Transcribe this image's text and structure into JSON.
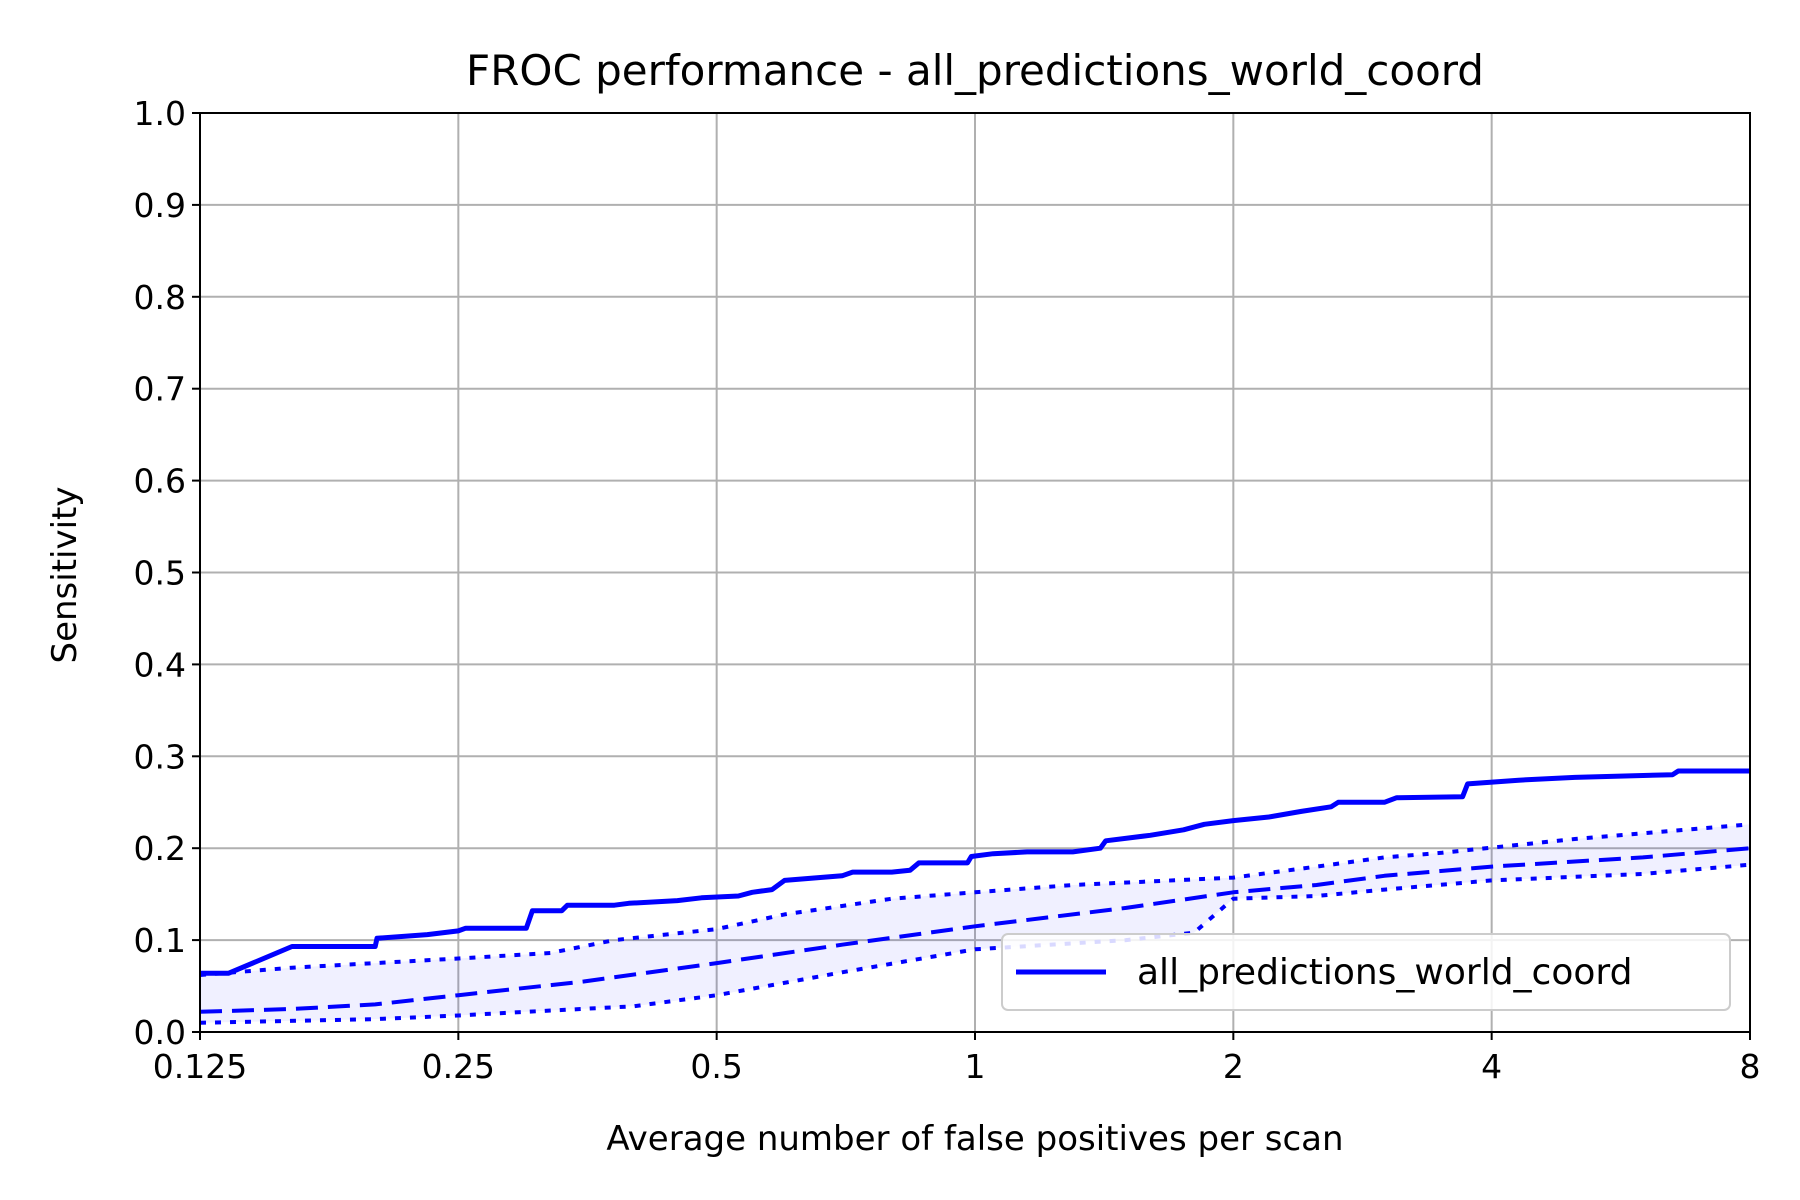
{
  "chart_data": {
    "type": "line",
    "title": "FROC performance - all_predictions_world_coord",
    "xlabel": "Average number of false positives per scan",
    "ylabel": "Sensitivity",
    "x_scale": "log2",
    "xlim": [
      0.125,
      8
    ],
    "ylim": [
      0.0,
      1.0
    ],
    "grid": true,
    "legend_position": "lower-right",
    "x_ticks": [
      0.125,
      0.25,
      0.5,
      1,
      2,
      4,
      8
    ],
    "x_tick_labels": [
      "0.125",
      "0.25",
      "0.5",
      "1",
      "2",
      "4",
      "8"
    ],
    "y_ticks": [
      0.0,
      0.1,
      0.2,
      0.3,
      0.4,
      0.5,
      0.6,
      0.7,
      0.8,
      0.9,
      1.0
    ],
    "y_tick_labels": [
      "0.0",
      "0.1",
      "0.2",
      "0.3",
      "0.4",
      "0.5",
      "0.6",
      "0.7",
      "0.8",
      "0.9",
      "1.0"
    ],
    "colors": {
      "series": "#0000ff",
      "band_fill": "#0000ff",
      "grid": "#b0b0b0",
      "legend_border": "#cccccc"
    },
    "series": [
      {
        "name": "all_predictions_world_coord",
        "style": "solid",
        "points": [
          [
            0.125,
            0.064
          ],
          [
            0.135,
            0.064
          ],
          [
            0.16,
            0.093
          ],
          [
            0.2,
            0.093
          ],
          [
            0.201,
            0.102
          ],
          [
            0.23,
            0.106
          ],
          [
            0.25,
            0.11
          ],
          [
            0.255,
            0.113
          ],
          [
            0.3,
            0.113
          ],
          [
            0.305,
            0.132
          ],
          [
            0.33,
            0.132
          ],
          [
            0.335,
            0.138
          ],
          [
            0.38,
            0.138
          ],
          [
            0.395,
            0.14
          ],
          [
            0.45,
            0.143
          ],
          [
            0.48,
            0.146
          ],
          [
            0.53,
            0.148
          ],
          [
            0.55,
            0.152
          ],
          [
            0.58,
            0.155
          ],
          [
            0.6,
            0.165
          ],
          [
            0.7,
            0.17
          ],
          [
            0.72,
            0.174
          ],
          [
            0.8,
            0.174
          ],
          [
            0.84,
            0.176
          ],
          [
            0.86,
            0.184
          ],
          [
            0.98,
            0.184
          ],
          [
            0.99,
            0.191
          ],
          [
            1.05,
            0.194
          ],
          [
            1.15,
            0.196
          ],
          [
            1.3,
            0.196
          ],
          [
            1.4,
            0.2
          ],
          [
            1.42,
            0.208
          ],
          [
            1.6,
            0.214
          ],
          [
            1.75,
            0.22
          ],
          [
            1.85,
            0.226
          ],
          [
            2.0,
            0.23
          ],
          [
            2.2,
            0.234
          ],
          [
            2.4,
            0.24
          ],
          [
            2.6,
            0.245
          ],
          [
            2.65,
            0.25
          ],
          [
            3.0,
            0.25
          ],
          [
            3.1,
            0.255
          ],
          [
            3.7,
            0.256
          ],
          [
            3.75,
            0.27
          ],
          [
            4.3,
            0.274
          ],
          [
            5.0,
            0.277
          ],
          [
            6.5,
            0.28
          ],
          [
            6.6,
            0.284
          ],
          [
            8.0,
            0.284
          ]
        ]
      },
      {
        "style": "dashed",
        "points": [
          [
            0.125,
            0.022
          ],
          [
            0.16,
            0.025
          ],
          [
            0.2,
            0.03
          ],
          [
            0.25,
            0.04
          ],
          [
            0.35,
            0.055
          ],
          [
            0.5,
            0.075
          ],
          [
            0.7,
            0.095
          ],
          [
            1.0,
            0.115
          ],
          [
            1.5,
            0.135
          ],
          [
            2.0,
            0.152
          ],
          [
            2.5,
            0.16
          ],
          [
            3.0,
            0.17
          ],
          [
            4.0,
            0.18
          ],
          [
            6.0,
            0.19
          ],
          [
            8.0,
            0.2
          ]
        ]
      },
      {
        "style": "dotted",
        "points": [
          [
            0.125,
            0.062
          ],
          [
            0.16,
            0.07
          ],
          [
            0.25,
            0.08
          ],
          [
            0.32,
            0.086
          ],
          [
            0.38,
            0.1
          ],
          [
            0.5,
            0.112
          ],
          [
            0.6,
            0.128
          ],
          [
            0.8,
            0.145
          ],
          [
            1.0,
            0.152
          ],
          [
            1.3,
            0.16
          ],
          [
            2.0,
            0.168
          ],
          [
            2.5,
            0.18
          ],
          [
            3.0,
            0.19
          ],
          [
            3.5,
            0.195
          ],
          [
            5.0,
            0.21
          ],
          [
            8.0,
            0.226
          ]
        ]
      },
      {
        "style": "dotted",
        "points": [
          [
            0.125,
            0.01
          ],
          [
            0.2,
            0.014
          ],
          [
            0.25,
            0.018
          ],
          [
            0.3,
            0.022
          ],
          [
            0.4,
            0.028
          ],
          [
            0.5,
            0.04
          ],
          [
            0.7,
            0.065
          ],
          [
            1.0,
            0.09
          ],
          [
            1.5,
            0.1
          ],
          [
            1.8,
            0.108
          ],
          [
            2.0,
            0.145
          ],
          [
            2.5,
            0.148
          ],
          [
            3.0,
            0.155
          ],
          [
            4.0,
            0.165
          ],
          [
            6.0,
            0.172
          ],
          [
            8.0,
            0.182
          ]
        ]
      }
    ],
    "legend_entries": [
      "all_predictions_world_coord"
    ]
  }
}
